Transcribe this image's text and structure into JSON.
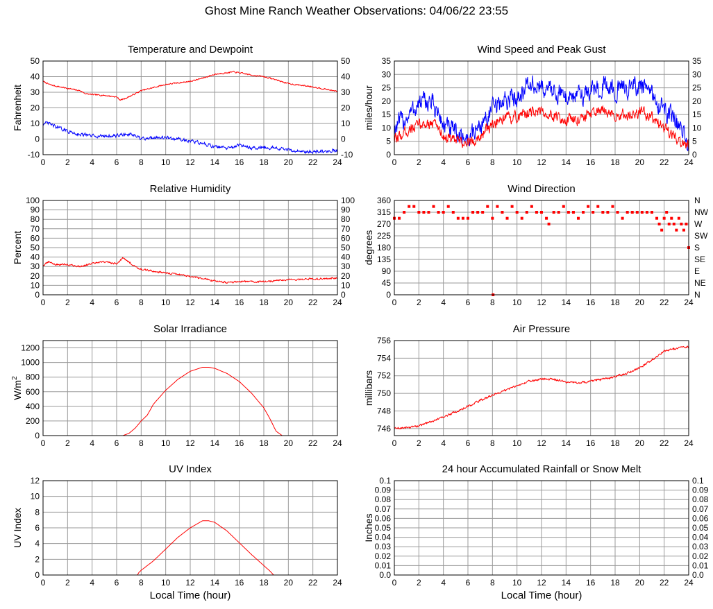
{
  "page": {
    "title": "Ghost Mine Ranch Weather Observations: 04/06/22 23:55",
    "xlabel": "Local Time (hour)"
  },
  "colors": {
    "red": "#ff0000",
    "blue": "#0000ff",
    "grid": "#999999",
    "axis": "#000000"
  },
  "chart_data": [
    {
      "id": "temp",
      "type": "line",
      "title": "Temperature and Dewpoint",
      "ylabel": "Fahrenheit",
      "ylim": [
        -10,
        50
      ],
      "yticks": [
        -10,
        0,
        10,
        20,
        30,
        40,
        50
      ],
      "right_ticks": true,
      "xlim": [
        0,
        24
      ],
      "xticks": [
        0,
        2,
        4,
        6,
        8,
        10,
        12,
        14,
        16,
        18,
        20,
        22,
        24
      ],
      "series": [
        {
          "name": "Temperature",
          "color": "#ff0000",
          "noise": 0.35,
          "x": [
            0,
            0.5,
            1,
            2,
            3,
            3.5,
            4,
            5,
            6,
            6.3,
            6.7,
            7.5,
            8,
            9,
            10,
            11,
            12,
            13,
            14,
            15,
            15.5,
            16,
            17,
            18,
            19,
            20,
            21,
            22,
            23,
            24
          ],
          "values": [
            37,
            35,
            34,
            32.5,
            31,
            29,
            28.5,
            28,
            27,
            25,
            26,
            29,
            31,
            33,
            35,
            36,
            37,
            39,
            41.5,
            42.5,
            43,
            42.5,
            41,
            40,
            38,
            35.5,
            34.5,
            33.5,
            32,
            30.5
          ]
        },
        {
          "name": "Dewpoint",
          "color": "#0000ff",
          "noise": 0.9,
          "x": [
            0,
            0.5,
            1,
            2,
            3,
            4,
            5,
            6,
            6.5,
            7,
            7.5,
            8,
            9,
            10,
            11,
            12,
            13,
            14,
            15,
            16,
            17,
            18,
            19,
            20,
            21,
            22,
            23,
            24
          ],
          "values": [
            10,
            10,
            8,
            5,
            3,
            2,
            2,
            2,
            3,
            3,
            2,
            0,
            1,
            1,
            0,
            -1,
            -3,
            -5,
            -6,
            -4,
            -6,
            -5,
            -6,
            -7,
            -8,
            -8,
            -8,
            -7
          ]
        }
      ]
    },
    {
      "id": "wind",
      "type": "line",
      "title": "Wind Speed and Peak Gust",
      "ylabel": "miles/hour",
      "ylim": [
        0,
        35
      ],
      "yticks": [
        0,
        5,
        10,
        15,
        20,
        25,
        30,
        35
      ],
      "right_ticks": true,
      "xlim": [
        0,
        24
      ],
      "xticks": [
        0,
        2,
        4,
        6,
        8,
        10,
        12,
        14,
        16,
        18,
        20,
        22,
        24
      ],
      "series": [
        {
          "name": "Peak Gust",
          "color": "#0000ff",
          "noise": 3.2,
          "x": [
            0,
            1,
            2,
            3,
            3.5,
            4,
            5,
            6,
            7,
            8,
            9,
            10,
            11,
            12,
            13,
            14,
            15,
            16,
            17,
            18,
            19,
            20,
            21,
            22,
            23,
            24
          ],
          "values": [
            10,
            14,
            19,
            20,
            16,
            11,
            8,
            6,
            11,
            17,
            20,
            22,
            26,
            25,
            24,
            22,
            22,
            24,
            26,
            24,
            25,
            26,
            22,
            17,
            12,
            4
          ]
        },
        {
          "name": "Wind Speed",
          "color": "#ff0000",
          "noise": 1.8,
          "x": [
            0,
            1,
            2,
            3,
            3.5,
            4,
            5,
            6,
            7,
            8,
            9,
            10,
            11,
            12,
            13,
            14,
            15,
            16,
            17,
            18,
            19,
            20,
            21,
            22,
            23,
            24
          ],
          "values": [
            5,
            9,
            11,
            12,
            11,
            7,
            5,
            4,
            7,
            11,
            13,
            14,
            16,
            16,
            15,
            13,
            13,
            15,
            16,
            15,
            15,
            16,
            14,
            10,
            6,
            3
          ]
        }
      ]
    },
    {
      "id": "rh",
      "type": "line",
      "title": "Relative Humidity",
      "ylabel": "Percent",
      "ylim": [
        0,
        100
      ],
      "yticks": [
        0,
        10,
        20,
        30,
        40,
        50,
        60,
        70,
        80,
        90,
        100
      ],
      "right_ticks": true,
      "xlim": [
        0,
        24
      ],
      "xticks": [
        0,
        2,
        4,
        6,
        8,
        10,
        12,
        14,
        16,
        18,
        20,
        22,
        24
      ],
      "series": [
        {
          "name": "Relative Humidity",
          "color": "#ff0000",
          "noise": 0.8,
          "x": [
            0,
            0.5,
            1,
            2,
            3,
            4,
            5,
            6,
            6.5,
            7,
            7.5,
            8,
            9,
            10,
            11,
            12,
            13,
            14,
            15,
            16,
            17,
            18,
            19,
            20,
            21,
            22,
            23,
            24
          ],
          "values": [
            31,
            35,
            32,
            32,
            30,
            33,
            35,
            33,
            39,
            35,
            30,
            27,
            25,
            23,
            22,
            19,
            17,
            15,
            13,
            14,
            14,
            14,
            15,
            16,
            16,
            17,
            17,
            18
          ]
        }
      ]
    },
    {
      "id": "wdir",
      "type": "scatter",
      "title": "Wind Direction",
      "ylabel": "degrees",
      "ylim": [
        0,
        360
      ],
      "yticks": [
        0,
        45,
        90,
        135,
        180,
        225,
        270,
        315,
        360
      ],
      "right_labels": [
        "N",
        "NE",
        "E",
        "SE",
        "S",
        "SW",
        "W",
        "NW",
        "N"
      ],
      "xlim": [
        0,
        24
      ],
      "xticks": [
        0,
        2,
        4,
        6,
        8,
        10,
        12,
        14,
        16,
        18,
        20,
        22,
        24
      ],
      "series": [
        {
          "name": "Wind Direction",
          "color": "#ff0000",
          "x": [
            0,
            0.4,
            0.8,
            1.2,
            1.6,
            2.0,
            2.4,
            2.8,
            3.2,
            3.6,
            4.0,
            4.4,
            4.8,
            5.2,
            5.6,
            6.0,
            6.4,
            6.8,
            7.2,
            7.6,
            8.0,
            8.05,
            8.4,
            8.8,
            9.2,
            9.6,
            10.0,
            10.4,
            10.8,
            11.2,
            11.6,
            12.0,
            12.4,
            12.6,
            13.0,
            13.4,
            13.8,
            14.2,
            14.6,
            15.0,
            15.4,
            15.8,
            16.2,
            16.6,
            17.0,
            17.4,
            17.8,
            18.2,
            18.6,
            19.0,
            19.4,
            19.8,
            20.2,
            20.6,
            21.0,
            21.4,
            21.6,
            21.8,
            22.0,
            22.2,
            22.4,
            22.6,
            22.8,
            23.0,
            23.2,
            23.4,
            23.6,
            23.8,
            24.0
          ],
          "values": [
            292,
            292,
            315,
            337,
            337,
            315,
            315,
            315,
            337,
            315,
            315,
            337,
            315,
            292,
            292,
            292,
            315,
            315,
            315,
            337,
            292,
            0,
            337,
            315,
            292,
            337,
            315,
            292,
            315,
            337,
            315,
            315,
            292,
            270,
            315,
            315,
            337,
            315,
            315,
            292,
            315,
            337,
            315,
            337,
            315,
            315,
            337,
            315,
            292,
            315,
            315,
            315,
            315,
            315,
            315,
            292,
            270,
            247,
            292,
            315,
            270,
            292,
            270,
            247,
            292,
            270,
            247,
            270,
            180
          ]
        }
      ]
    },
    {
      "id": "solar",
      "type": "line",
      "title": "Solar Irradiance",
      "ylabel": "W/m",
      "ylabel_sup": "2",
      "ylim": [
        0,
        1300
      ],
      "yticks": [
        0,
        200,
        400,
        600,
        800,
        1000,
        1200
      ],
      "right_ticks": false,
      "xlim": [
        0,
        24
      ],
      "xticks": [
        0,
        2,
        4,
        6,
        8,
        10,
        12,
        14,
        16,
        18,
        20,
        22,
        24
      ],
      "series": [
        {
          "name": "Solar Irradiance",
          "color": "#ff0000",
          "noise": 0,
          "x": [
            0,
            6.5,
            7,
            7.5,
            8,
            8.5,
            9,
            10,
            11,
            12,
            13,
            13.5,
            14,
            15,
            16,
            17,
            18,
            18.5,
            19,
            19.5,
            24
          ],
          "values": [
            0,
            0,
            30,
            100,
            200,
            280,
            430,
            620,
            770,
            880,
            935,
            935,
            920,
            850,
            740,
            580,
            380,
            230,
            60,
            0,
            0
          ]
        }
      ]
    },
    {
      "id": "pressure",
      "type": "line",
      "title": "Air Pressure",
      "ylabel": "millibars",
      "ylim": [
        745.2,
        756
      ],
      "yticks": [
        746,
        748,
        750,
        752,
        754,
        756
      ],
      "right_ticks": false,
      "xlim": [
        0,
        24
      ],
      "xticks": [
        0,
        2,
        4,
        6,
        8,
        10,
        12,
        14,
        16,
        18,
        20,
        22,
        24
      ],
      "series": [
        {
          "name": "Air Pressure",
          "color": "#ff0000",
          "noise": 0.1,
          "x": [
            0,
            1,
            2,
            3,
            4,
            5,
            6,
            7,
            8,
            9,
            10,
            11,
            12,
            13,
            14,
            15,
            16,
            17,
            18,
            19,
            20,
            21,
            22,
            23,
            24
          ],
          "values": [
            746,
            746.1,
            746.3,
            746.8,
            747.3,
            747.9,
            748.5,
            749.2,
            749.8,
            750.3,
            750.9,
            751.4,
            751.6,
            751.6,
            751.3,
            751.2,
            751.4,
            751.6,
            751.9,
            752.3,
            752.9,
            753.8,
            754.8,
            755.1,
            755.3
          ]
        }
      ]
    },
    {
      "id": "uv",
      "type": "line",
      "title": "UV Index",
      "ylabel": "UV Index",
      "ylim": [
        0,
        12
      ],
      "yticks": [
        0,
        2,
        4,
        6,
        8,
        10,
        12
      ],
      "right_ticks": false,
      "xlim": [
        0,
        24
      ],
      "xticks": [
        0,
        2,
        4,
        6,
        8,
        10,
        12,
        14,
        16,
        18,
        20,
        22,
        24
      ],
      "series": [
        {
          "name": "UV Index",
          "color": "#ff0000",
          "noise": 0,
          "x": [
            0,
            7.7,
            7.8,
            8,
            9,
            10,
            11,
            12,
            13,
            13.5,
            14,
            15,
            16,
            17,
            18,
            18.5,
            18.8,
            24
          ],
          "values": [
            0,
            0,
            0.3,
            0.6,
            1.8,
            3.3,
            4.8,
            6.0,
            6.9,
            6.9,
            6.7,
            5.6,
            4.1,
            2.6,
            1.2,
            0.5,
            0,
            0
          ]
        }
      ]
    },
    {
      "id": "rain",
      "type": "line",
      "title": "24 hour Accumulated Rainfall or Snow Melt",
      "ylabel": "Inches",
      "ylim": [
        0,
        0.1
      ],
      "yticks": [
        0.0,
        0.01,
        0.02,
        0.03,
        0.04,
        0.05,
        0.06,
        0.07,
        0.08,
        0.09,
        0.1
      ],
      "ytick_labels": [
        "0.0",
        "0.01",
        "0.02",
        "0.03",
        "0.04",
        "0.05",
        "0.06",
        "0.07",
        "0.08",
        "0.09",
        "0.1"
      ],
      "right_ticks": true,
      "xlim": [
        0,
        24
      ],
      "xticks": [
        0,
        2,
        4,
        6,
        8,
        10,
        12,
        14,
        16,
        18,
        20,
        22,
        24
      ],
      "series": [
        {
          "name": "Rainfall",
          "color": "#ff0000",
          "noise": 0,
          "x": [
            0,
            24
          ],
          "values": [
            0,
            0
          ]
        }
      ]
    }
  ]
}
